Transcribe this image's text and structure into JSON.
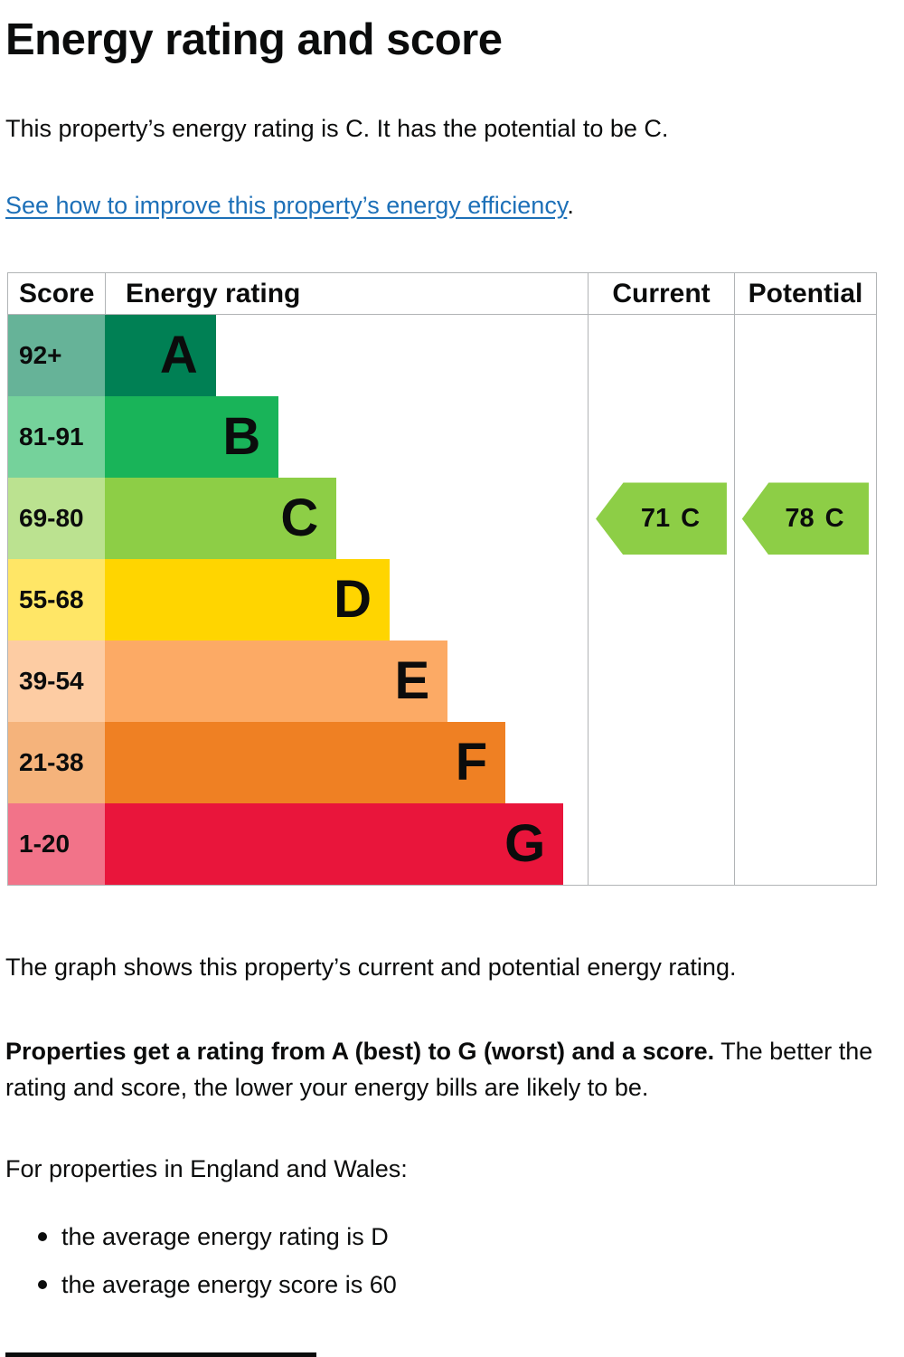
{
  "page": {
    "title": "Energy rating and score",
    "intro": "This property’s energy rating is C. It has the potential to be C.",
    "improve_link": "See how to improve this property’s energy efficiency",
    "improve_suffix": ".",
    "graph_caption": "The graph shows this property’s current and potential energy rating.",
    "explain_bold": "Properties get a rating from A (best) to G (worst) and a score.",
    "explain_rest": " The better the rating and score, the lower your energy bills are likely to be.",
    "region_intro": "For properties in England and Wales:",
    "bullets": [
      "the average energy rating is D",
      "the average energy score is 60"
    ]
  },
  "chart_data": {
    "type": "bar",
    "title": "Energy rating and score",
    "headers": {
      "score": "Score",
      "rating": "Energy rating",
      "current": "Current",
      "potential": "Potential"
    },
    "bands": [
      {
        "score": "92+",
        "letter": "A",
        "color": "#008054",
        "tint": "#66b398",
        "width_pct": 23
      },
      {
        "score": "81-91",
        "letter": "B",
        "color": "#19b459",
        "tint": "#75d29b",
        "width_pct": 36
      },
      {
        "score": "69-80",
        "letter": "C",
        "color": "#8dce46",
        "tint": "#bbe290",
        "width_pct": 48
      },
      {
        "score": "55-68",
        "letter": "D",
        "color": "#ffd500",
        "tint": "#ffe666",
        "width_pct": 59
      },
      {
        "score": "39-54",
        "letter": "E",
        "color": "#fcaa65",
        "tint": "#fdcca3",
        "width_pct": 71
      },
      {
        "score": "21-38",
        "letter": "F",
        "color": "#ef8023",
        "tint": "#f5b37b",
        "width_pct": 83
      },
      {
        "score": "1-20",
        "letter": "G",
        "color": "#e9153b",
        "tint": "#f27389",
        "width_pct": 95
      }
    ],
    "current": {
      "score": 71,
      "letter": "C",
      "band": "C",
      "color": "#8dce46"
    },
    "potential": {
      "score": 78,
      "letter": "C",
      "band": "C",
      "color": "#8dce46"
    },
    "axis_note": "Score ranges 1-20 (G, worst) to 92+ (A, best)",
    "link_color": "#1d70b8",
    "border_color": "#b1b4b6"
  }
}
